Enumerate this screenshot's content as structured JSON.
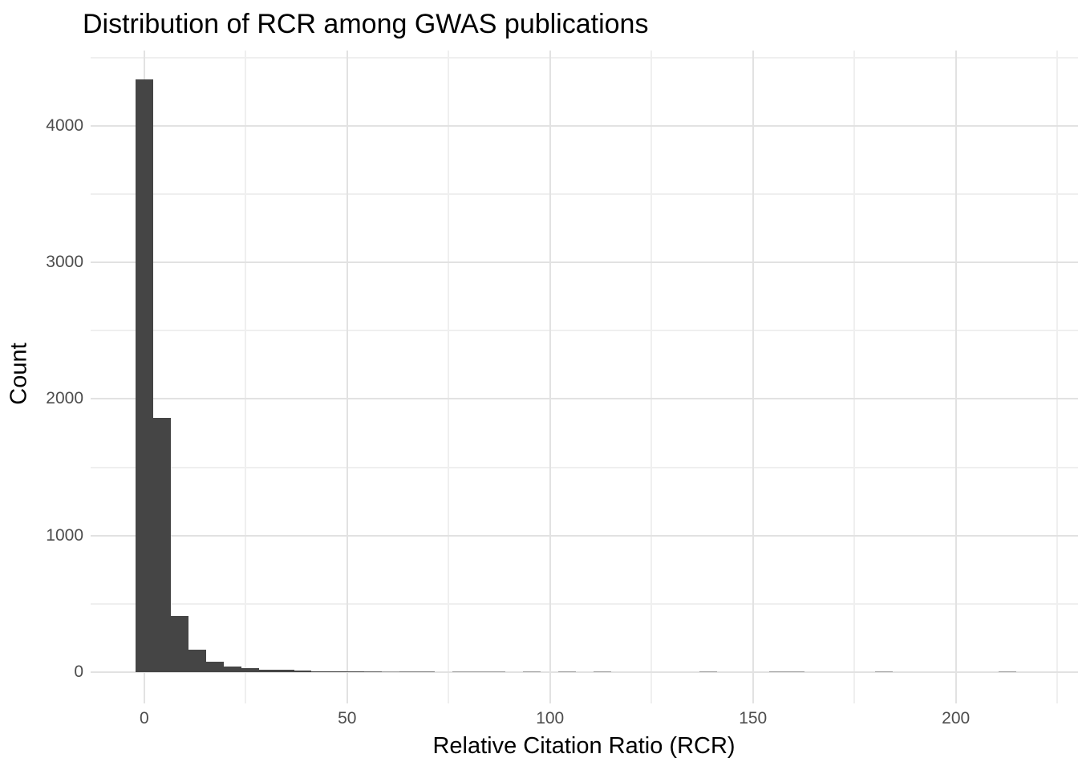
{
  "title": "Distribution of RCR among GWAS publications",
  "colors": {
    "background": "#ffffff",
    "bar_fill": "#454545",
    "grid_major": "#e2e2e2",
    "grid_minor": "#efefef",
    "tick_text": "#4d4d4d",
    "title_text": "#000000"
  },
  "chart_data": {
    "type": "bar",
    "subtype": "histogram",
    "title": "Distribution of RCR among GWAS publications",
    "xlabel": "Relative Citation Ratio (RCR)",
    "ylabel": "Count",
    "bin_center_start": 0,
    "binwidth": 4.34,
    "counts": [
      4340,
      1860,
      410,
      165,
      75,
      42,
      29,
      19,
      16,
      12,
      8,
      5,
      4,
      3,
      1,
      2,
      2,
      0,
      1,
      1,
      1,
      0,
      1,
      0,
      1,
      0,
      1,
      0,
      0,
      0,
      0,
      0,
      1,
      0,
      0,
      0,
      1,
      1,
      0,
      0,
      0,
      0,
      1,
      0,
      0,
      0,
      0,
      0,
      0,
      1
    ],
    "axes": {
      "x": {
        "range": [
          -13.2,
          230.1
        ],
        "major_ticks": [
          0,
          50,
          100,
          150,
          200
        ],
        "minor_gridlines": [
          25,
          75,
          125,
          175,
          225
        ]
      },
      "y": {
        "range": [
          -229,
          4552
        ],
        "major_ticks": [
          0,
          1000,
          2000,
          3000,
          4000
        ],
        "minor_gridlines": [
          500,
          1500,
          2500,
          3500,
          4500
        ]
      }
    },
    "grid": true,
    "legend": false
  }
}
